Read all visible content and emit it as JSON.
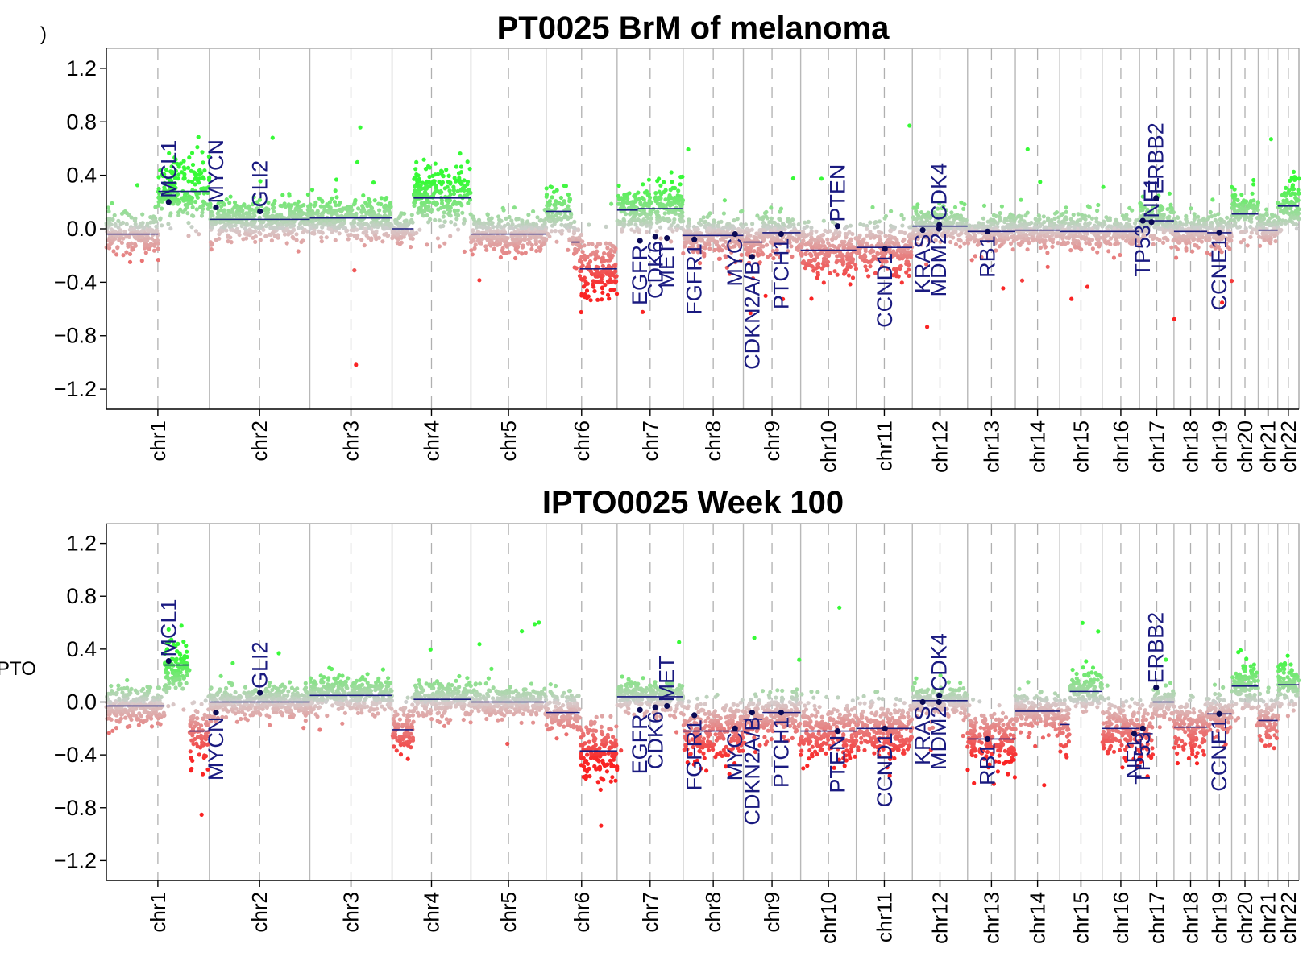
{
  "chart_data": [
    {
      "type": "scatter",
      "title": "PT0025 BrM of melanoma",
      "ylim": [
        -1.35,
        1.35
      ],
      "yticks": [
        "1.2",
        "0.8",
        "0.4",
        "0.0",
        "−0.4",
        "−0.8",
        "−1.2"
      ],
      "ytick_values": [
        1.2,
        0.8,
        0.4,
        0.0,
        -0.4,
        -0.8,
        -1.2
      ],
      "chromosomes": [
        {
          "name": "chr1",
          "start": 0,
          "end": 248,
          "segments": [
            {
              "s": 0,
              "e": 125,
              "v": -0.04
            },
            {
              "s": 125,
              "e": 248,
              "v": 0.28
            }
          ]
        },
        {
          "name": "chr2",
          "start": 248,
          "end": 490,
          "segments": [
            {
              "s": 248,
              "e": 490,
              "v": 0.07
            }
          ]
        },
        {
          "name": "chr3",
          "start": 490,
          "end": 688,
          "segments": [
            {
              "s": 490,
              "e": 688,
              "v": 0.08
            }
          ]
        },
        {
          "name": "chr4",
          "start": 688,
          "end": 878,
          "segments": [
            {
              "s": 688,
              "e": 740,
              "v": 0.0
            },
            {
              "s": 740,
              "e": 878,
              "v": 0.23
            }
          ]
        },
        {
          "name": "chr5",
          "start": 878,
          "end": 1059,
          "segments": [
            {
              "s": 878,
              "e": 1059,
              "v": -0.04
            }
          ]
        },
        {
          "name": "chr6",
          "start": 1059,
          "end": 1230,
          "segments": [
            {
              "s": 1059,
              "e": 1120,
              "v": 0.13
            },
            {
              "s": 1120,
              "e": 1140,
              "v": -0.1
            },
            {
              "s": 1140,
              "e": 1230,
              "v": -0.3
            }
          ]
        },
        {
          "name": "chr7",
          "start": 1230,
          "end": 1389,
          "segments": [
            {
              "s": 1230,
              "e": 1280,
              "v": 0.14
            },
            {
              "s": 1280,
              "e": 1389,
              "v": 0.15
            }
          ]
        },
        {
          "name": "chr8",
          "start": 1389,
          "end": 1534,
          "segments": [
            {
              "s": 1389,
              "e": 1534,
              "v": -0.05
            }
          ]
        },
        {
          "name": "chr9",
          "start": 1534,
          "end": 1672,
          "segments": [
            {
              "s": 1534,
              "e": 1580,
              "v": -0.1
            },
            {
              "s": 1580,
              "e": 1672,
              "v": -0.03
            }
          ]
        },
        {
          "name": "chr10",
          "start": 1672,
          "end": 1806,
          "segments": [
            {
              "s": 1672,
              "e": 1806,
              "v": -0.16
            }
          ]
        },
        {
          "name": "chr11",
          "start": 1806,
          "end": 1941,
          "segments": [
            {
              "s": 1806,
              "e": 1941,
              "v": -0.14
            }
          ]
        },
        {
          "name": "chr12",
          "start": 1941,
          "end": 2074,
          "segments": [
            {
              "s": 1941,
              "e": 2074,
              "v": 0.02
            }
          ]
        },
        {
          "name": "chr13",
          "start": 2074,
          "end": 2189,
          "segments": [
            {
              "s": 2074,
              "e": 2189,
              "v": -0.02
            }
          ]
        },
        {
          "name": "chr14",
          "start": 2189,
          "end": 2296,
          "segments": [
            {
              "s": 2189,
              "e": 2296,
              "v": -0.01
            }
          ]
        },
        {
          "name": "chr15",
          "start": 2296,
          "end": 2398,
          "segments": [
            {
              "s": 2296,
              "e": 2398,
              "v": -0.02
            }
          ]
        },
        {
          "name": "chr16",
          "start": 2398,
          "end": 2488,
          "segments": [
            {
              "s": 2398,
              "e": 2488,
              "v": -0.02
            }
          ]
        },
        {
          "name": "chr17",
          "start": 2488,
          "end": 2571,
          "segments": [
            {
              "s": 2488,
              "e": 2571,
              "v": 0.06
            }
          ]
        },
        {
          "name": "chr18",
          "start": 2571,
          "end": 2651,
          "segments": [
            {
              "s": 2571,
              "e": 2651,
              "v": -0.02
            }
          ]
        },
        {
          "name": "chr19",
          "start": 2651,
          "end": 2710,
          "segments": [
            {
              "s": 2651,
              "e": 2710,
              "v": -0.03
            }
          ]
        },
        {
          "name": "chr20",
          "start": 2710,
          "end": 2774,
          "segments": [
            {
              "s": 2710,
              "e": 2774,
              "v": 0.11
            }
          ]
        },
        {
          "name": "chr21",
          "start": 2774,
          "end": 2821,
          "segments": [
            {
              "s": 2774,
              "e": 2821,
              "v": -0.01
            }
          ]
        },
        {
          "name": "chr22",
          "start": 2821,
          "end": 2872,
          "segments": [
            {
              "s": 2821,
              "e": 2872,
              "v": 0.17
            }
          ]
        }
      ],
      "genes": [
        {
          "name": "MCL1",
          "pos": 150,
          "v": 0.2,
          "side": "up"
        },
        {
          "name": "MYCN",
          "pos": 264,
          "v": 0.16,
          "side": "up"
        },
        {
          "name": "GLI2",
          "pos": 370,
          "v": 0.13,
          "side": "up"
        },
        {
          "name": "EGFR",
          "pos": 1285,
          "v": -0.09,
          "side": "down"
        },
        {
          "name": "CDK6",
          "pos": 1322,
          "v": -0.06,
          "side": "down"
        },
        {
          "name": "MET",
          "pos": 1350,
          "v": -0.07,
          "side": "down"
        },
        {
          "name": "FGFR1",
          "pos": 1416,
          "v": -0.08,
          "side": "down"
        },
        {
          "name": "MYC",
          "pos": 1514,
          "v": -0.04,
          "side": "down"
        },
        {
          "name": "CDKN2A/B",
          "pos": 1555,
          "v": -0.21,
          "side": "down"
        },
        {
          "name": "PTCH1",
          "pos": 1625,
          "v": -0.04,
          "side": "down"
        },
        {
          "name": "PTEN",
          "pos": 1761,
          "v": 0.02,
          "side": "up"
        },
        {
          "name": "CCND1",
          "pos": 1875,
          "v": -0.15,
          "side": "down"
        },
        {
          "name": "KRAS",
          "pos": 1966,
          "v": -0.01,
          "side": "down"
        },
        {
          "name": "MDM2",
          "pos": 2005,
          "v": 0.0,
          "side": "down"
        },
        {
          "name": "CDK4",
          "pos": 2006,
          "v": 0.03,
          "side": "up"
        },
        {
          "name": "RB1",
          "pos": 2122,
          "v": -0.02,
          "side": "down"
        },
        {
          "name": "TP53",
          "pos": 2496,
          "v": 0.06,
          "side": "down"
        },
        {
          "name": "NF1",
          "pos": 2517,
          "v": 0.05,
          "side": "up"
        },
        {
          "name": "ERBB2",
          "pos": 2528,
          "v": 0.23,
          "side": "up"
        },
        {
          "name": "CCNE1",
          "pos": 2680,
          "v": -0.03,
          "side": "down"
        }
      ]
    },
    {
      "type": "scatter",
      "title": "IPTO0025 Week 100",
      "ylim": [
        -1.35,
        1.35
      ],
      "yticks": [
        "1.2",
        "0.8",
        "0.4",
        "0.0",
        "−0.4",
        "−0.8",
        "−1.2"
      ],
      "ytick_values": [
        1.2,
        0.8,
        0.4,
        0.0,
        -0.4,
        -0.8,
        -1.2
      ],
      "chromosomes": [
        {
          "name": "chr1",
          "start": 0,
          "end": 248,
          "segments": [
            {
              "s": 0,
              "e": 140,
              "v": -0.03
            },
            {
              "s": 140,
              "e": 200,
              "v": 0.28
            },
            {
              "s": 200,
              "e": 248,
              "v": -0.22
            }
          ]
        },
        {
          "name": "chr2",
          "start": 248,
          "end": 490,
          "segments": [
            {
              "s": 248,
              "e": 490,
              "v": 0.0
            }
          ]
        },
        {
          "name": "chr3",
          "start": 490,
          "end": 688,
          "segments": [
            {
              "s": 490,
              "e": 688,
              "v": 0.05
            }
          ]
        },
        {
          "name": "chr4",
          "start": 688,
          "end": 878,
          "segments": [
            {
              "s": 688,
              "e": 740,
              "v": -0.21
            },
            {
              "s": 740,
              "e": 878,
              "v": 0.02
            }
          ]
        },
        {
          "name": "chr5",
          "start": 878,
          "end": 1059,
          "segments": [
            {
              "s": 878,
              "e": 1059,
              "v": 0.0
            }
          ]
        },
        {
          "name": "chr6",
          "start": 1059,
          "end": 1230,
          "segments": [
            {
              "s": 1059,
              "e": 1140,
              "v": -0.08
            },
            {
              "s": 1140,
              "e": 1230,
              "v": -0.37
            }
          ]
        },
        {
          "name": "chr7",
          "start": 1230,
          "end": 1389,
          "segments": [
            {
              "s": 1230,
              "e": 1389,
              "v": 0.04
            }
          ]
        },
        {
          "name": "chr8",
          "start": 1389,
          "end": 1534,
          "segments": [
            {
              "s": 1389,
              "e": 1534,
              "v": -0.22
            }
          ]
        },
        {
          "name": "chr9",
          "start": 1534,
          "end": 1672,
          "segments": [
            {
              "s": 1534,
              "e": 1580,
              "v": -0.13
            },
            {
              "s": 1580,
              "e": 1672,
              "v": -0.08
            }
          ]
        },
        {
          "name": "chr10",
          "start": 1672,
          "end": 1806,
          "segments": [
            {
              "s": 1672,
              "e": 1806,
              "v": -0.22
            }
          ]
        },
        {
          "name": "chr11",
          "start": 1806,
          "end": 1941,
          "segments": [
            {
              "s": 1806,
              "e": 1941,
              "v": -0.2
            }
          ]
        },
        {
          "name": "chr12",
          "start": 1941,
          "end": 2074,
          "segments": [
            {
              "s": 1941,
              "e": 2074,
              "v": 0.01
            }
          ]
        },
        {
          "name": "chr13",
          "start": 2074,
          "end": 2189,
          "segments": [
            {
              "s": 2074,
              "e": 2189,
              "v": -0.28
            }
          ]
        },
        {
          "name": "chr14",
          "start": 2189,
          "end": 2296,
          "segments": [
            {
              "s": 2189,
              "e": 2296,
              "v": -0.07
            }
          ]
        },
        {
          "name": "chr15",
          "start": 2296,
          "end": 2398,
          "segments": [
            {
              "s": 2296,
              "e": 2320,
              "v": -0.17
            },
            {
              "s": 2320,
              "e": 2398,
              "v": 0.08
            }
          ]
        },
        {
          "name": "chr16",
          "start": 2398,
          "end": 2488,
          "segments": [
            {
              "s": 2398,
              "e": 2488,
              "v": -0.2
            }
          ]
        },
        {
          "name": "chr17",
          "start": 2488,
          "end": 2571,
          "segments": [
            {
              "s": 2488,
              "e": 2520,
              "v": -0.24
            },
            {
              "s": 2520,
              "e": 2571,
              "v": 0.0
            }
          ]
        },
        {
          "name": "chr18",
          "start": 2571,
          "end": 2651,
          "segments": [
            {
              "s": 2571,
              "e": 2651,
              "v": -0.19
            }
          ]
        },
        {
          "name": "chr19",
          "start": 2651,
          "end": 2710,
          "segments": [
            {
              "s": 2651,
              "e": 2710,
              "v": -0.09
            }
          ]
        },
        {
          "name": "chr20",
          "start": 2710,
          "end": 2774,
          "segments": [
            {
              "s": 2710,
              "e": 2774,
              "v": 0.12
            }
          ]
        },
        {
          "name": "chr21",
          "start": 2774,
          "end": 2821,
          "segments": [
            {
              "s": 2774,
              "e": 2821,
              "v": -0.14
            }
          ]
        },
        {
          "name": "chr22",
          "start": 2821,
          "end": 2872,
          "segments": [
            {
              "s": 2821,
              "e": 2872,
              "v": 0.13
            }
          ]
        }
      ],
      "genes": [
        {
          "name": "MCL1",
          "pos": 150,
          "v": 0.31,
          "side": "up"
        },
        {
          "name": "MYCN",
          "pos": 264,
          "v": -0.08,
          "side": "down"
        },
        {
          "name": "GLI2",
          "pos": 370,
          "v": 0.07,
          "side": "up"
        },
        {
          "name": "EGFR",
          "pos": 1285,
          "v": -0.06,
          "side": "down"
        },
        {
          "name": "CDK6",
          "pos": 1322,
          "v": -0.04,
          "side": "down"
        },
        {
          "name": "MET",
          "pos": 1350,
          "v": -0.03,
          "side": "up"
        },
        {
          "name": "FGFR1",
          "pos": 1416,
          "v": -0.1,
          "side": "down"
        },
        {
          "name": "MYC",
          "pos": 1514,
          "v": -0.2,
          "side": "down"
        },
        {
          "name": "CDKN2A/B",
          "pos": 1555,
          "v": -0.08,
          "side": "down"
        },
        {
          "name": "PTCH1",
          "pos": 1625,
          "v": -0.08,
          "side": "down"
        },
        {
          "name": "PTEN",
          "pos": 1761,
          "v": -0.22,
          "side": "down"
        },
        {
          "name": "CCND1",
          "pos": 1875,
          "v": -0.2,
          "side": "down"
        },
        {
          "name": "KRAS",
          "pos": 1966,
          "v": 0.0,
          "side": "down"
        },
        {
          "name": "MDM2",
          "pos": 2005,
          "v": 0.0,
          "side": "down"
        },
        {
          "name": "CDK4",
          "pos": 2006,
          "v": 0.05,
          "side": "up"
        },
        {
          "name": "RB1",
          "pos": 2122,
          "v": -0.28,
          "side": "down"
        },
        {
          "name": "NF1",
          "pos": 2475,
          "v": -0.24,
          "side": "down"
        },
        {
          "name": "TP53",
          "pos": 2496,
          "v": -0.2,
          "side": "down"
        },
        {
          "name": "ERBB2",
          "pos": 2528,
          "v": 0.11,
          "side": "up"
        },
        {
          "name": "CCNE1",
          "pos": 2680,
          "v": -0.09,
          "side": "down"
        }
      ]
    }
  ],
  "labels": {
    "corner_mark": ")",
    "ylabel_fragment": "PTO"
  }
}
